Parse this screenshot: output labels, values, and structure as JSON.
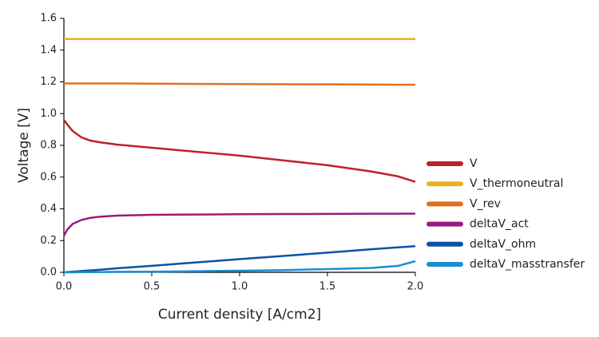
{
  "chart_data": {
    "type": "line",
    "xlabel": "Current density [A/cm2]",
    "ylabel": "Voltage [V]",
    "x": [
      0,
      0.02,
      0.05,
      0.1,
      0.15,
      0.2,
      0.3,
      0.5,
      0.75,
      1.0,
      1.25,
      1.5,
      1.75,
      1.9,
      2.0
    ],
    "series": [
      {
        "name": "V",
        "color": "#c0202a",
        "values": [
          0.96,
          0.93,
          0.89,
          0.85,
          0.83,
          0.82,
          0.805,
          0.785,
          0.76,
          0.735,
          0.705,
          0.675,
          0.635,
          0.605,
          0.57
        ]
      },
      {
        "name": "V_thermoneutral",
        "color": "#e8b020",
        "values": [
          1.47,
          1.47,
          1.47,
          1.47,
          1.47,
          1.47,
          1.47,
          1.47,
          1.47,
          1.47,
          1.47,
          1.47,
          1.47,
          1.47,
          1.47
        ]
      },
      {
        "name": "V_rev",
        "color": "#e07020",
        "values": [
          1.19,
          1.19,
          1.19,
          1.19,
          1.19,
          1.19,
          1.19,
          1.189,
          1.187,
          1.186,
          1.185,
          1.184,
          1.183,
          1.182,
          1.182
        ]
      },
      {
        "name": "deltaV_act",
        "color": "#9b1a7e",
        "values": [
          0.23,
          0.27,
          0.305,
          0.33,
          0.343,
          0.35,
          0.357,
          0.362,
          0.364,
          0.366,
          0.367,
          0.368,
          0.369,
          0.369,
          0.37
        ]
      },
      {
        "name": "deltaV_ohm",
        "color": "#0a52a6",
        "values": [
          0,
          0.002,
          0.004,
          0.008,
          0.012,
          0.016,
          0.025,
          0.041,
          0.062,
          0.083,
          0.103,
          0.124,
          0.145,
          0.157,
          0.165
        ]
      },
      {
        "name": "deltaV_masstransfer",
        "color": "#1a8ed0",
        "values": [
          0,
          0,
          0,
          0.001,
          0.001,
          0.002,
          0.003,
          0.004,
          0.007,
          0.01,
          0.014,
          0.02,
          0.028,
          0.04,
          0.07
        ]
      }
    ],
    "xlim": [
      0,
      2.0
    ],
    "xticks": [
      {
        "value": 0,
        "label": "0.0"
      },
      0.5,
      {
        "value": 1,
        "label": "1.0"
      },
      1.5,
      {
        "value": 2,
        "label": "2.0"
      }
    ],
    "ylim": [
      0,
      1.6
    ],
    "yticks": [
      {
        "value": 0,
        "label": "0.0"
      },
      0.2,
      0.4,
      0.6,
      0.8,
      {
        "value": 1,
        "label": "1.0"
      },
      1.2,
      1.4,
      1.6
    ],
    "grid": false,
    "legend": "right"
  }
}
